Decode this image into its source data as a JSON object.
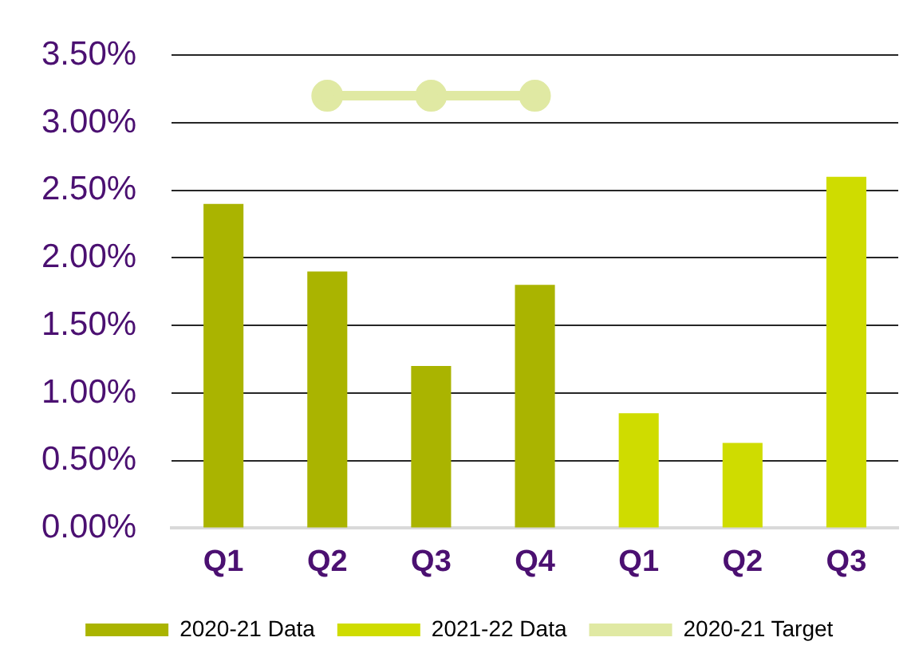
{
  "chart_data": {
    "type": "bar",
    "categories": [
      "Q1",
      "Q2",
      "Q3",
      "Q4",
      "Q1",
      "Q2",
      "Q3"
    ],
    "series": [
      {
        "name": "2020-21 Data",
        "color": "#aab400",
        "values": [
          2.4,
          1.9,
          1.2,
          1.8,
          null,
          null,
          null
        ]
      },
      {
        "name": "2021-22 Data",
        "color": "#cfdc00",
        "values": [
          null,
          null,
          null,
          null,
          0.85,
          0.63,
          2.6
        ]
      },
      {
        "name": "2020-21 Target",
        "type": "line",
        "color": "#e0e9a3",
        "values": [
          null,
          3.2,
          3.2,
          3.2,
          null,
          null,
          null
        ]
      }
    ],
    "ylim": [
      0,
      3.5
    ],
    "yticks": [
      {
        "value": 0,
        "label": "0.00%"
      },
      {
        "value": 0.5,
        "label": "0.50%"
      },
      {
        "value": 1,
        "label": "1.00%"
      },
      {
        "value": 1.5,
        "label": "1.50%"
      },
      {
        "value": 2,
        "label": "2.00%"
      },
      {
        "value": 2.5,
        "label": "2.50%"
      },
      {
        "value": 3,
        "label": "3.00%"
      },
      {
        "value": 3.5,
        "label": "3.50%"
      }
    ],
    "grid": "y",
    "legend": "bottom",
    "marker": "circle",
    "line_style": "solid"
  }
}
